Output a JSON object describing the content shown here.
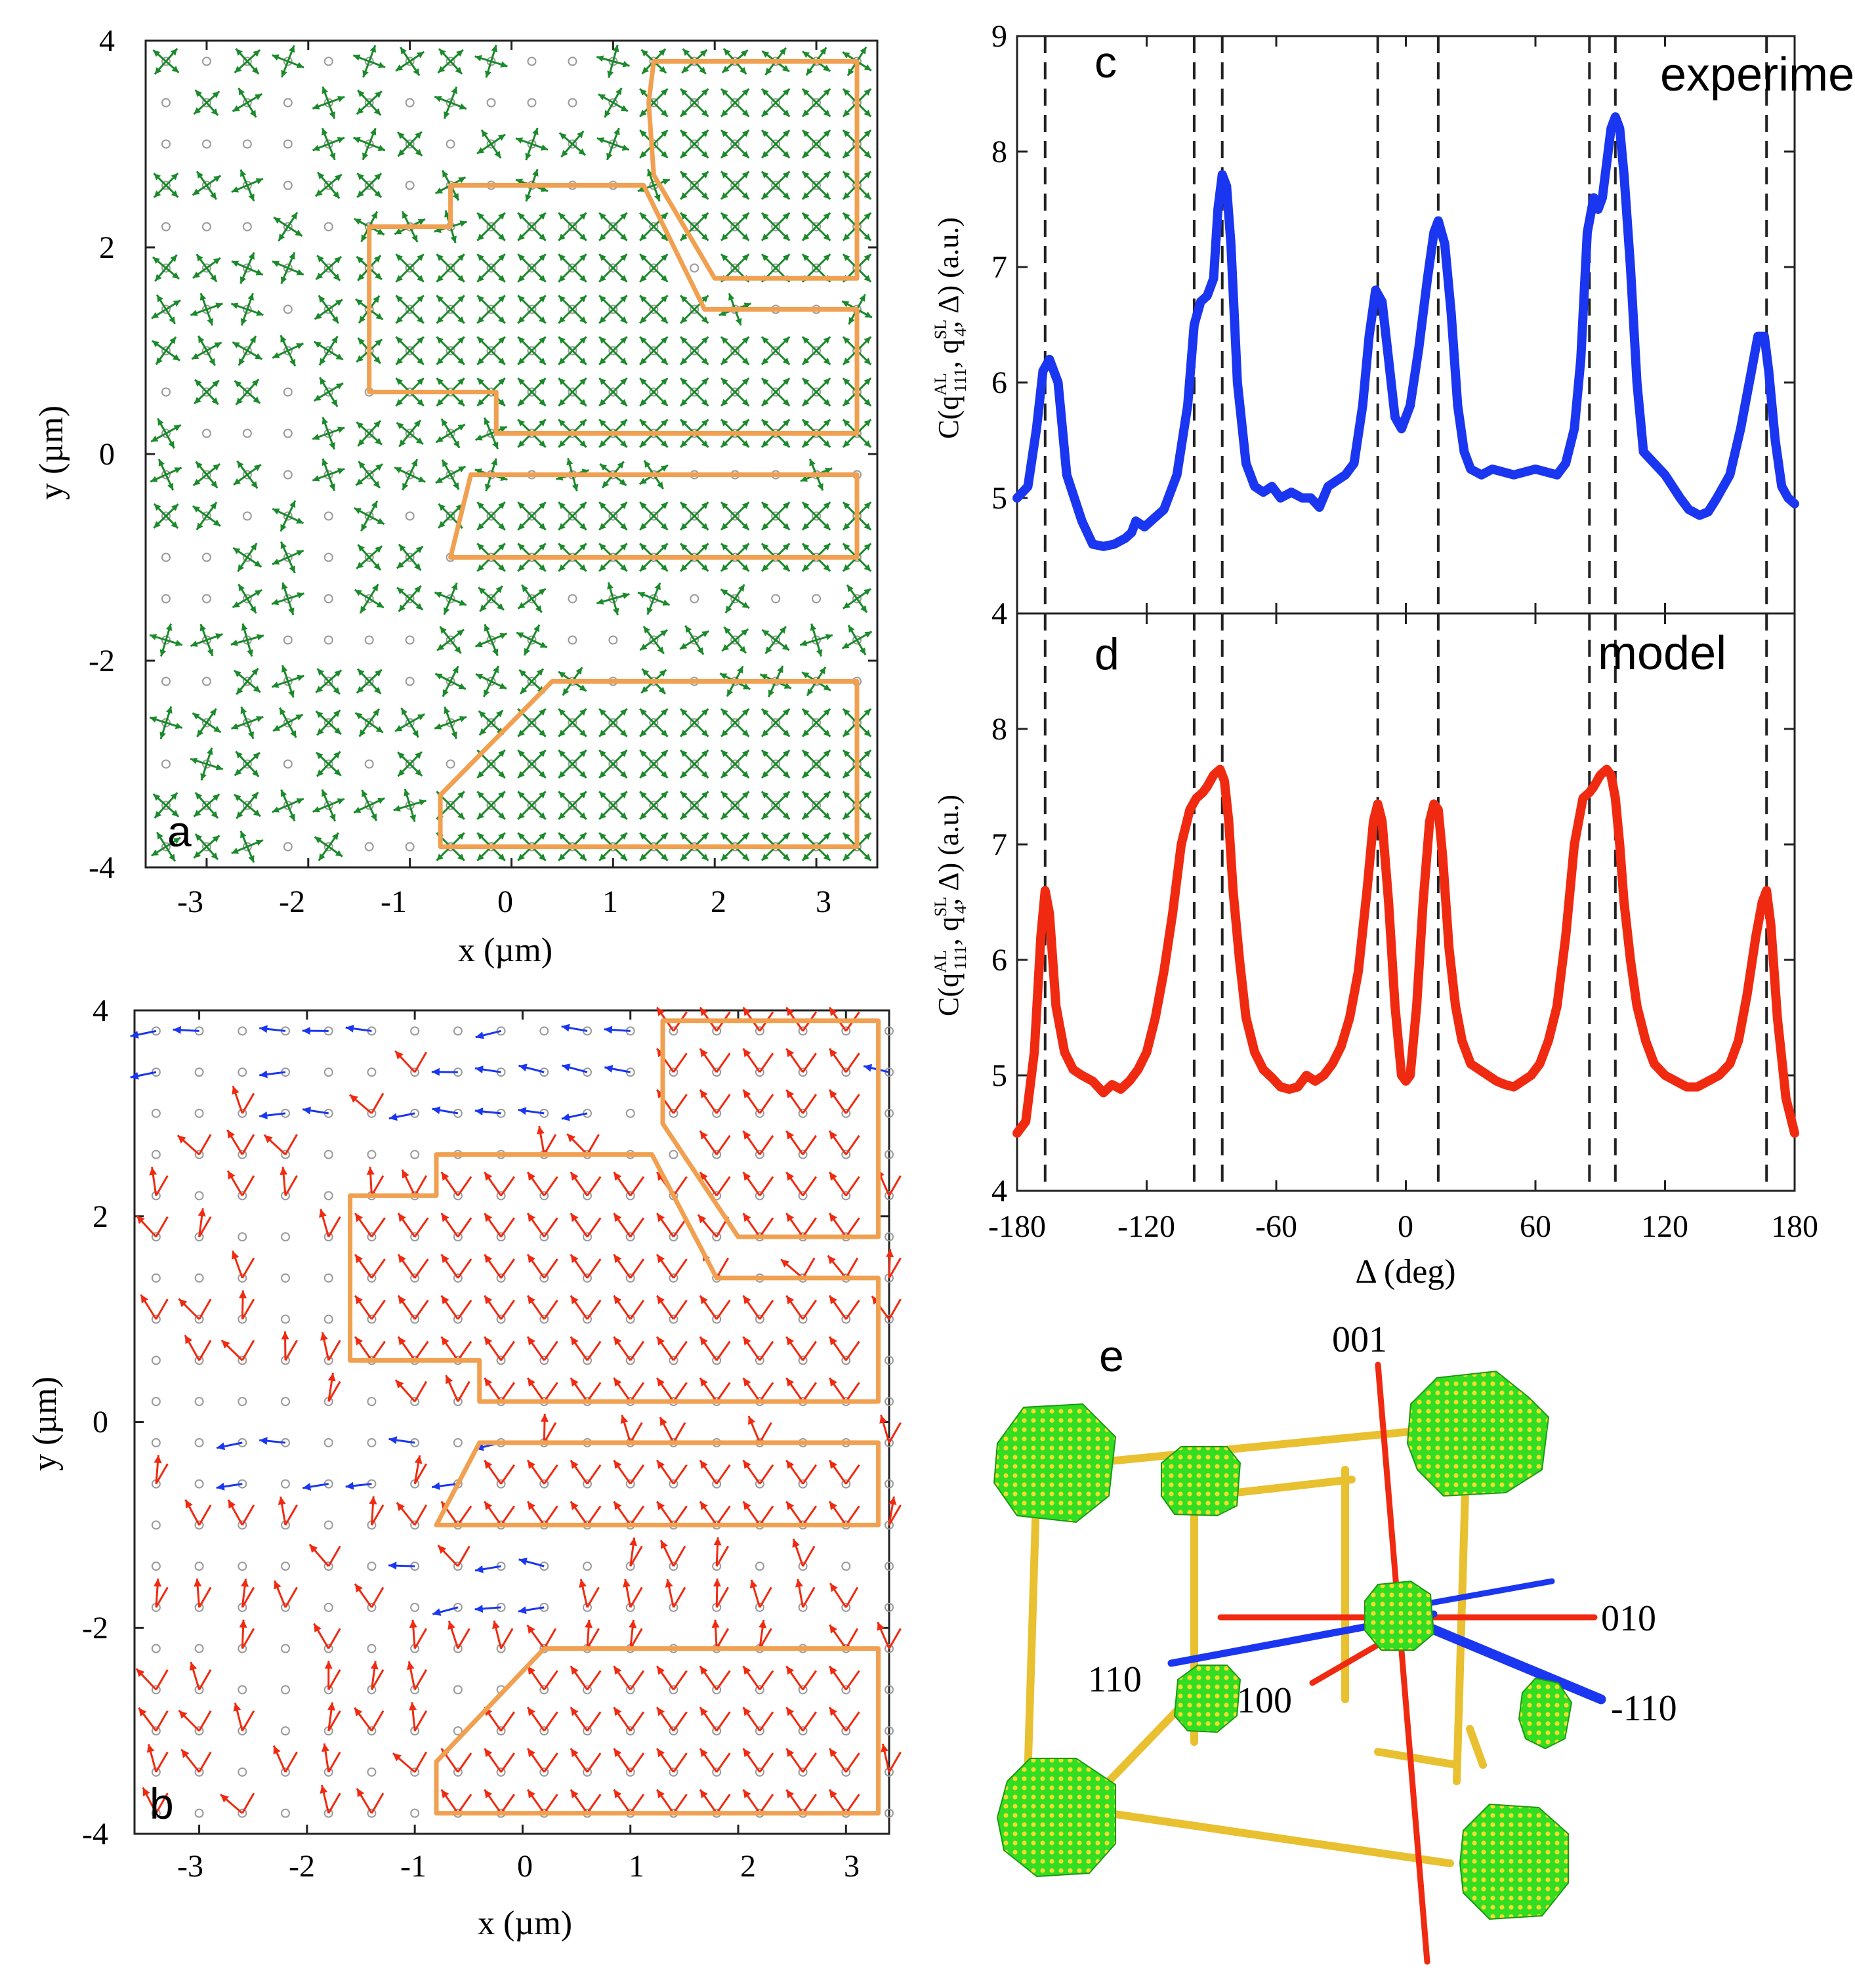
{
  "colors": {
    "green": "#1a8a2a",
    "orange": "#f0a050",
    "blue": "#1a36f0",
    "red": "#f02a10",
    "grid_circle": "#9a9a9a",
    "cube_green": "#33dd22",
    "cube_yellow": "#f2dc2e",
    "rod_yellow": "#e8c030"
  },
  "chart_data": [
    {
      "panel": "a",
      "type": "scatter",
      "title": "",
      "xlabel": "x (µm)",
      "ylabel": "y (µm)",
      "xlim": [
        -3.6,
        3.6
      ],
      "ylim": [
        -4,
        4
      ],
      "xticks": [
        -3,
        -2,
        -1,
        0,
        1,
        2,
        3
      ],
      "yticks": [
        -4,
        -2,
        0,
        2,
        4
      ],
      "grid_spacing": 0.4,
      "markers": "four-fold orientation crosses",
      "regions": [
        [
          [
            1.4,
            3.8
          ],
          [
            1.9,
            3.8
          ],
          [
            3.4,
            3.8
          ],
          [
            3.4,
            1.7
          ],
          [
            2.0,
            1.7
          ],
          [
            1.4,
            2.7
          ],
          [
            1.35,
            3.4
          ]
        ],
        [
          [
            -1.4,
            2.2
          ],
          [
            -0.6,
            2.2
          ],
          [
            -0.6,
            2.6
          ],
          [
            1.3,
            2.6
          ],
          [
            1.9,
            1.4
          ],
          [
            3.4,
            1.4
          ],
          [
            3.4,
            0.2
          ],
          [
            -0.15,
            0.2
          ],
          [
            -0.15,
            0.6
          ],
          [
            -1.4,
            0.6
          ]
        ],
        [
          [
            -0.4,
            -0.2
          ],
          [
            3.4,
            -0.2
          ],
          [
            3.4,
            -1.0
          ],
          [
            -0.6,
            -1.0
          ]
        ],
        [
          [
            0.4,
            -2.2
          ],
          [
            3.4,
            -2.2
          ],
          [
            3.4,
            -3.8
          ],
          [
            -0.7,
            -3.8
          ],
          [
            -0.7,
            -3.3
          ]
        ]
      ]
    },
    {
      "panel": "b",
      "type": "scatter",
      "title": "",
      "xlabel": "x (µm)",
      "ylabel": "y (µm)",
      "xlim": [
        -3.6,
        3.4
      ],
      "ylim": [
        -4,
        4
      ],
      "xticks": [
        -3,
        -2,
        -1,
        0,
        1,
        2,
        3
      ],
      "yticks": [
        -4,
        -2,
        0,
        2,
        4
      ],
      "grid_spacing": 0.4,
      "markers": "red and blue orientation arrows",
      "regions": [
        [
          [
            1.3,
            3.9
          ],
          [
            3.3,
            3.9
          ],
          [
            3.3,
            1.8
          ],
          [
            2.0,
            1.8
          ],
          [
            1.3,
            2.9
          ]
        ],
        [
          [
            -1.6,
            2.2
          ],
          [
            -0.8,
            2.2
          ],
          [
            -0.8,
            2.6
          ],
          [
            1.2,
            2.6
          ],
          [
            1.8,
            1.4
          ],
          [
            3.3,
            1.4
          ],
          [
            3.3,
            0.2
          ],
          [
            -0.4,
            0.2
          ],
          [
            -0.4,
            0.6
          ],
          [
            -1.6,
            0.6
          ]
        ],
        [
          [
            -0.4,
            -0.2
          ],
          [
            3.3,
            -0.2
          ],
          [
            3.3,
            -1.0
          ],
          [
            -0.8,
            -1.0
          ]
        ],
        [
          [
            0.2,
            -2.2
          ],
          [
            3.3,
            -2.2
          ],
          [
            3.3,
            -3.8
          ],
          [
            -0.8,
            -3.8
          ],
          [
            -0.8,
            -3.3
          ]
        ]
      ]
    },
    {
      "panel": "c",
      "type": "line",
      "title": "experiment",
      "xlabel": "",
      "ylabel": "C(q111AL, q4SL, Δ) (a.u.)",
      "xlim": [
        -180,
        180
      ],
      "ylim": [
        4,
        9
      ],
      "yticks": [
        4,
        5,
        6,
        7,
        8,
        9
      ],
      "dashed_lines": [
        -167,
        -98,
        -85,
        -13,
        15,
        85,
        97,
        167
      ],
      "series": [
        {
          "name": "experiment",
          "x": [
            -180,
            -175,
            -171,
            -168,
            -165,
            -161,
            -157,
            -150,
            -145,
            -140,
            -135,
            -130,
            -127,
            -125,
            -121,
            -118,
            -112,
            -106,
            -101,
            -98,
            -95,
            -92,
            -89,
            -87,
            -85,
            -83,
            -81,
            -78,
            -74,
            -70,
            -66,
            -62,
            -58,
            -53,
            -48,
            -44,
            -40,
            -36,
            -32,
            -28,
            -24,
            -20,
            -17,
            -14,
            -11,
            -8,
            -5,
            -2,
            2,
            6,
            10,
            13,
            15,
            18,
            21,
            24,
            27,
            30,
            35,
            40,
            50,
            60,
            70,
            74,
            78,
            81,
            84,
            87,
            89,
            91,
            93,
            95,
            97,
            99,
            101,
            104,
            107,
            110,
            115,
            120,
            127,
            131,
            136,
            140,
            144,
            150,
            155,
            160,
            163,
            166,
            168,
            171,
            174,
            177,
            180
          ],
          "values": [
            5.0,
            5.1,
            5.6,
            6.1,
            6.2,
            6.0,
            5.2,
            4.8,
            4.6,
            4.58,
            4.6,
            4.65,
            4.7,
            4.8,
            4.75,
            4.8,
            4.9,
            5.2,
            5.8,
            6.5,
            6.7,
            6.75,
            6.9,
            7.5,
            7.8,
            7.7,
            7.2,
            6.0,
            5.3,
            5.1,
            5.05,
            5.1,
            5.0,
            5.05,
            5.0,
            5.0,
            4.92,
            5.1,
            5.15,
            5.2,
            5.3,
            5.8,
            6.4,
            6.8,
            6.7,
            6.2,
            5.7,
            5.6,
            5.8,
            6.3,
            6.9,
            7.3,
            7.4,
            7.2,
            6.6,
            5.8,
            5.4,
            5.25,
            5.2,
            5.25,
            5.2,
            5.25,
            5.2,
            5.3,
            5.6,
            6.2,
            7.3,
            7.6,
            7.5,
            7.6,
            7.9,
            8.2,
            8.3,
            8.2,
            7.8,
            7.0,
            6.0,
            5.4,
            5.3,
            5.2,
            5.0,
            4.9,
            4.85,
            4.88,
            5.0,
            5.2,
            5.6,
            6.1,
            6.4,
            6.4,
            6.1,
            5.5,
            5.1,
            5.0,
            4.95
          ]
        }
      ]
    },
    {
      "panel": "d",
      "type": "line",
      "title": "model",
      "xlabel": "Δ (deg)",
      "ylabel": "C(q111AL, q4SL, Δ) (a.u.)",
      "xlim": [
        -180,
        180
      ],
      "ylim": [
        4,
        9
      ],
      "xticks": [
        -180,
        -120,
        -60,
        0,
        60,
        120,
        180
      ],
      "yticks": [
        4,
        5,
        6,
        7,
        8
      ],
      "dashed_lines": [
        -167,
        -98,
        -85,
        -13,
        15,
        85,
        97,
        167
      ],
      "series": [
        {
          "name": "model",
          "x": [
            -180,
            -176,
            -172,
            -169,
            -167,
            -165,
            -162,
            -158,
            -154,
            -150,
            -145,
            -140,
            -136,
            -132,
            -128,
            -124,
            -120,
            -116,
            -112,
            -108,
            -104,
            -100,
            -97,
            -94,
            -92,
            -89,
            -86,
            -84,
            -82,
            -80,
            -77,
            -74,
            -70,
            -66,
            -62,
            -58,
            -54,
            -50,
            -46,
            -42,
            -38,
            -34,
            -30,
            -26,
            -22,
            -18,
            -15,
            -13,
            -11,
            -8,
            -5,
            -2,
            0,
            2,
            5,
            8,
            11,
            13,
            15,
            17,
            20,
            23,
            26,
            30,
            34,
            38,
            42,
            46,
            50,
            54,
            58,
            62,
            66,
            70,
            74,
            78,
            82,
            85,
            87,
            90,
            93,
            95,
            97,
            99,
            101,
            104,
            107,
            111,
            115,
            120,
            125,
            130,
            135,
            140,
            145,
            150,
            154,
            158,
            162,
            165,
            167,
            169,
            172,
            176,
            180
          ],
          "values": [
            4.5,
            4.6,
            5.2,
            6.2,
            6.6,
            6.4,
            5.6,
            5.2,
            5.05,
            5.0,
            4.95,
            4.85,
            4.92,
            4.88,
            4.95,
            5.05,
            5.2,
            5.5,
            5.9,
            6.4,
            7.0,
            7.3,
            7.4,
            7.45,
            7.5,
            7.6,
            7.65,
            7.55,
            7.2,
            6.6,
            6.0,
            5.5,
            5.2,
            5.05,
            4.98,
            4.9,
            4.88,
            4.9,
            5.0,
            4.95,
            5.0,
            5.1,
            5.25,
            5.5,
            5.9,
            6.6,
            7.2,
            7.35,
            7.2,
            6.5,
            5.6,
            5.0,
            4.95,
            5.0,
            5.6,
            6.5,
            7.2,
            7.35,
            7.3,
            6.9,
            6.1,
            5.6,
            5.3,
            5.1,
            5.05,
            5.0,
            4.95,
            4.92,
            4.9,
            4.95,
            5.0,
            5.1,
            5.3,
            5.6,
            6.2,
            7.0,
            7.4,
            7.45,
            7.5,
            7.6,
            7.65,
            7.6,
            7.4,
            7.0,
            6.5,
            6.0,
            5.6,
            5.3,
            5.1,
            5.0,
            4.95,
            4.9,
            4.9,
            4.95,
            5.0,
            5.1,
            5.3,
            5.7,
            6.2,
            6.5,
            6.6,
            6.3,
            5.5,
            4.8,
            4.5
          ]
        }
      ]
    }
  ],
  "panels": {
    "a": {
      "letter": "a",
      "x_title": "x (µm)",
      "y_title": "y (µm)",
      "x_ticks": [
        "-3",
        "-2",
        "-1",
        "0",
        "1",
        "2",
        "3"
      ],
      "y_ticks": [
        "4",
        "2",
        "0",
        "-2",
        "-4"
      ]
    },
    "b": {
      "letter": "b",
      "x_title": "x (µm)",
      "y_title": "y (µm)",
      "x_ticks": [
        "-3",
        "-2",
        "-1",
        "0",
        "1",
        "2",
        "3"
      ],
      "y_ticks": [
        "4",
        "2",
        "0",
        "-2",
        "-4"
      ]
    },
    "c": {
      "letter": "c",
      "label": "experiment",
      "y_ticks": [
        "9",
        "8",
        "7",
        "6",
        "5",
        "4"
      ]
    },
    "d": {
      "letter": "d",
      "label": "model",
      "y_ticks": [
        "8",
        "7",
        "6",
        "5",
        "4"
      ],
      "x_ticks": [
        "-180",
        "-120",
        "-60",
        "0",
        "60",
        "120",
        "180"
      ],
      "x_title": "Δ (deg)"
    },
    "e": {
      "letter": "e",
      "axis_001": "001",
      "axis_010": "010",
      "axis_110": "110",
      "axis_100": "100",
      "axis_m110": "-110"
    }
  }
}
